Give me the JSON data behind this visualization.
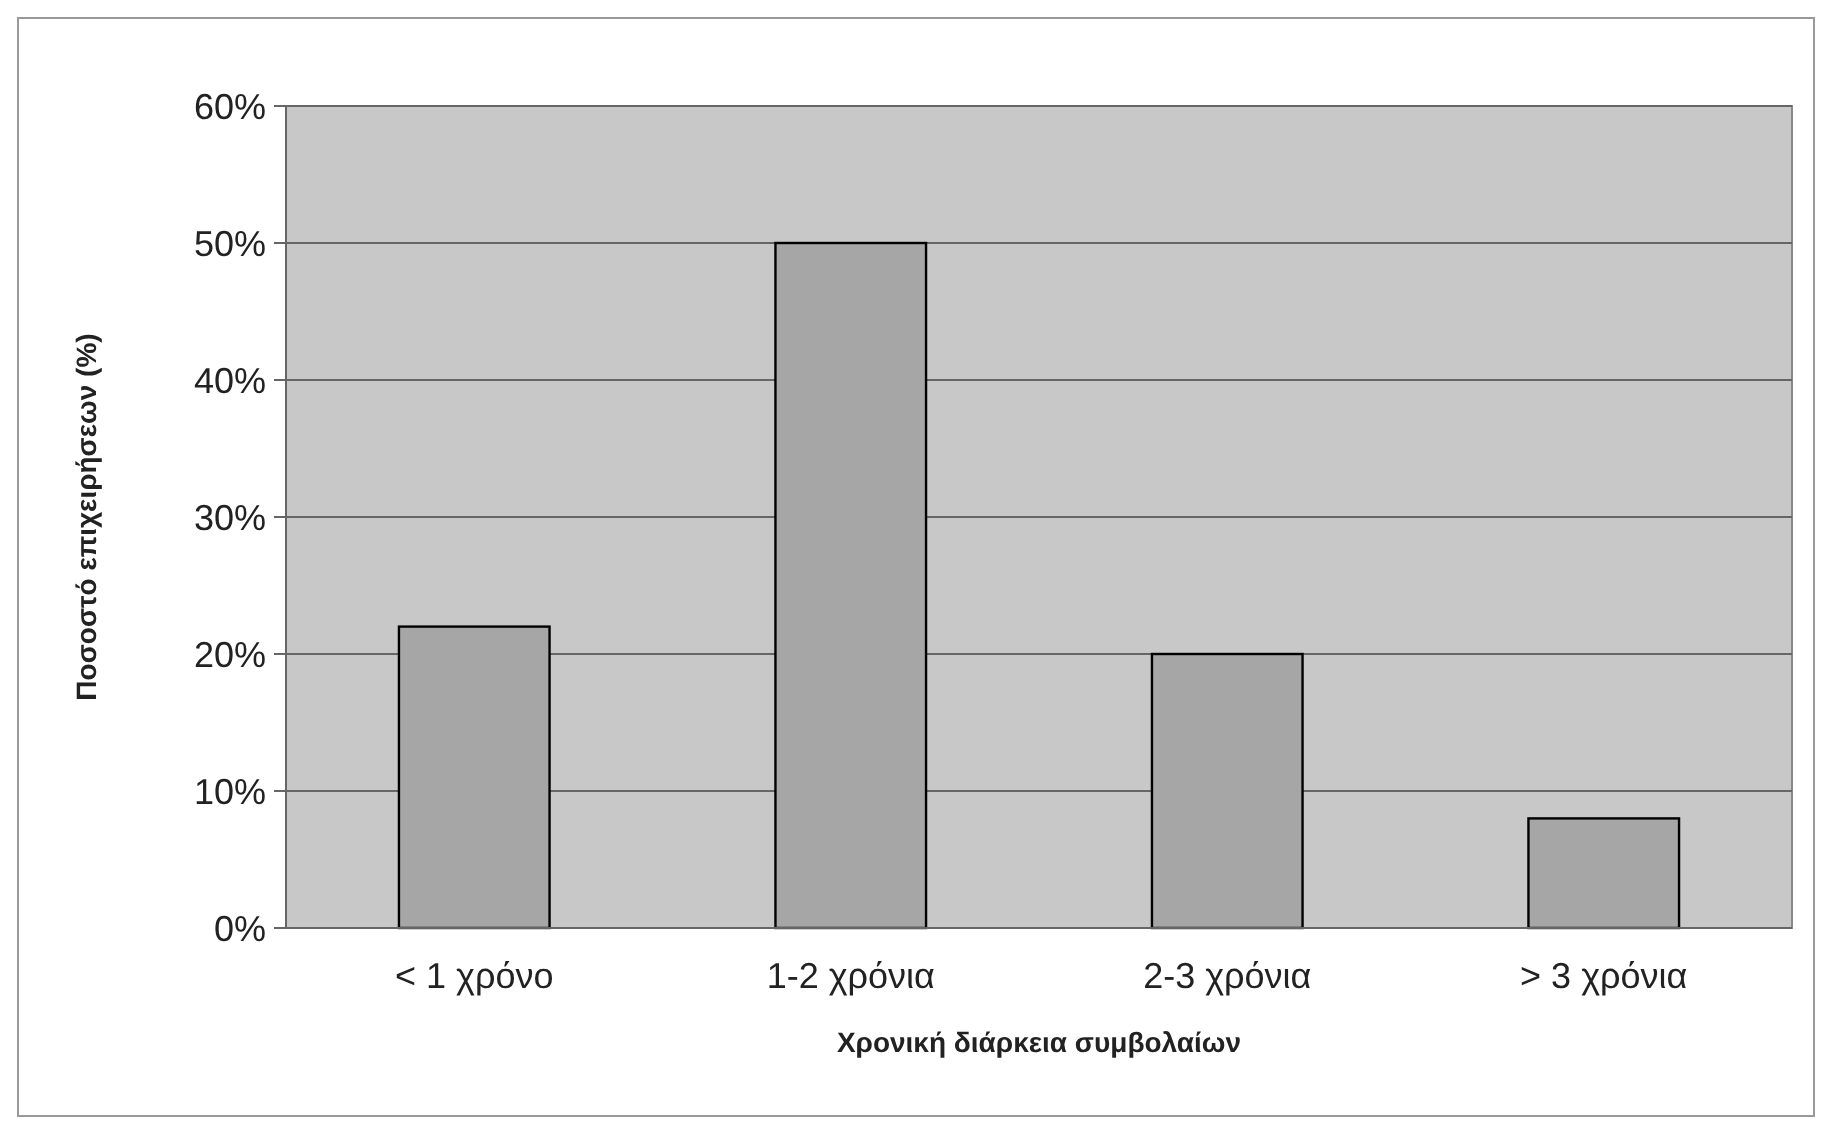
{
  "chart_data": {
    "type": "bar",
    "xlabel": "Χρονική διάρκεια συμβολαίων",
    "ylabel": "Ποσοστό επιχειρήσεων (%)",
    "categories": [
      "< 1 χρόνο",
      "1-2 χρόνια",
      "2-3 χρόνια",
      "> 3 χρόνια"
    ],
    "values": [
      22,
      50,
      20,
      8
    ],
    "color": "#a6a6a6",
    "ylim": [
      0,
      60
    ],
    "yticks": [
      {
        "value": 0,
        "label": "0%"
      },
      {
        "value": 10,
        "label": "10%"
      },
      {
        "value": 20,
        "label": "20%"
      },
      {
        "value": 30,
        "label": "30%"
      },
      {
        "value": 40,
        "label": "40%"
      },
      {
        "value": 50,
        "label": "50%"
      },
      {
        "value": 60,
        "label": "60%"
      }
    ],
    "grid": "y"
  }
}
